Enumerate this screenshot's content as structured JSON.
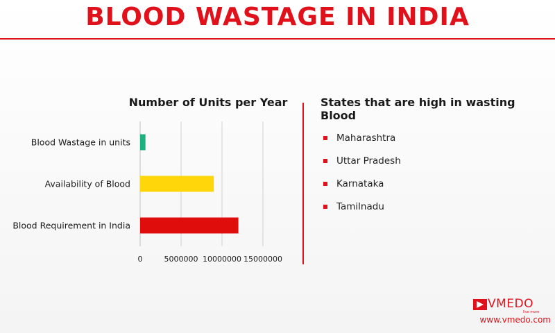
{
  "header": {
    "title": "BLOOD WASTAGE IN INDIA"
  },
  "chart_data": {
    "type": "bar",
    "orientation": "horizontal",
    "title": "Number of Units per Year",
    "categories": [
      "Blood Wastage in units",
      "Availability of Blood",
      "Blood Requirement in India"
    ],
    "values": [
      650000,
      9000000,
      12000000
    ],
    "colors": [
      "#1fb07f",
      "#ffd60a",
      "#e00d0d"
    ],
    "xlim": [
      0,
      15000000
    ],
    "xticks": [
      0,
      5000000,
      10000000,
      15000000
    ],
    "xtick_labels": [
      "0",
      "5000000",
      "10000000",
      "15000000"
    ],
    "grid": true,
    "legend": "none"
  },
  "states": {
    "title": "States that are high in wasting Blood",
    "items": [
      "Maharashtra",
      "Uttar Pradesh",
      "Karnataka",
      "Tamilnadu"
    ]
  },
  "branding": {
    "logo_text": "VMEDO",
    "logo_tagline": "live more",
    "website": "www.vmedo.com",
    "accent_color": "#e0111b"
  }
}
